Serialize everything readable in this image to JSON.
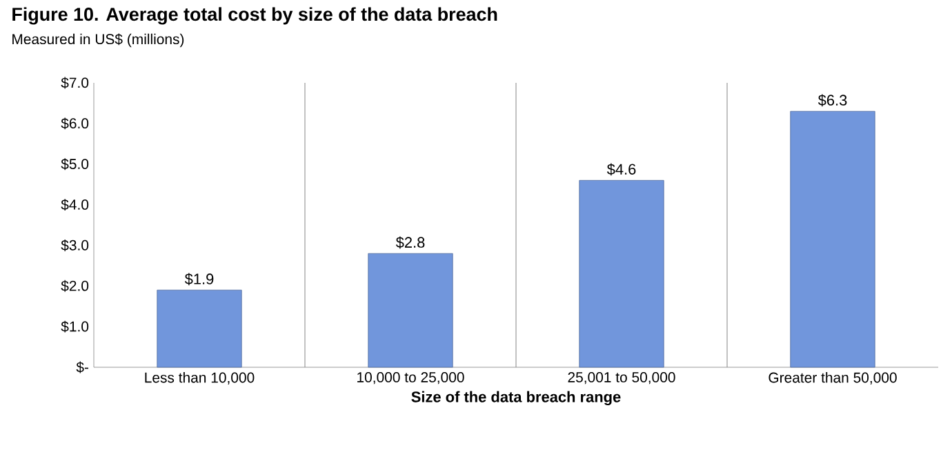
{
  "chart_data": {
    "type": "bar",
    "title": "Figure 10. Average total cost by size of the data breach",
    "subtitle": "Measured in US$ (millions)",
    "xlabel": "Size of the data breach range",
    "categories": [
      "Less than 10,000",
      "10,000 to 25,000",
      "25,001 to 50,000",
      "Greater than 50,000"
    ],
    "values": [
      1.9,
      2.8,
      4.6,
      6.3
    ],
    "value_labels": [
      "$1.9",
      "$2.8",
      "$4.6",
      "$6.3"
    ],
    "color": "#7196dc",
    "ylim": [
      0,
      7
    ],
    "yticks": [
      {
        "value": 0,
        "label": "$-"
      },
      {
        "value": 1,
        "label": "$1.0"
      },
      {
        "value": 2,
        "label": "$2.0"
      },
      {
        "value": 3,
        "label": "$3.0"
      },
      {
        "value": 4,
        "label": "$4.0"
      },
      {
        "value": 5,
        "label": "$5.0"
      },
      {
        "value": 6,
        "label": "$6.0"
      },
      {
        "value": 7,
        "label": "$7.0"
      }
    ],
    "grid": "x"
  }
}
